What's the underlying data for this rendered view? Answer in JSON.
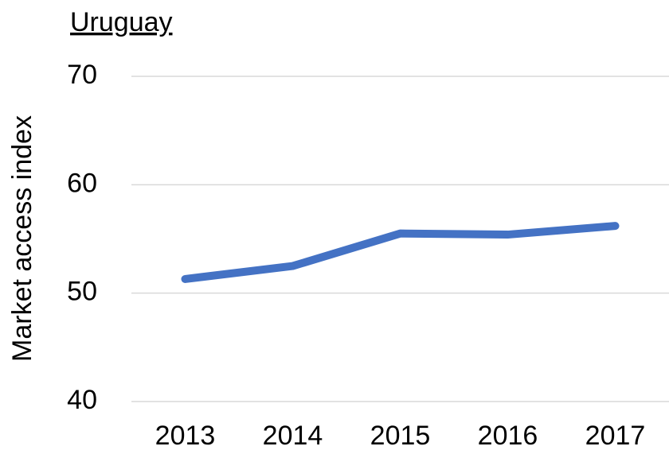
{
  "chart_data": {
    "type": "line",
    "title": "Uruguay",
    "ylabel": "Market access index",
    "categories": [
      "2013",
      "2014",
      "2015",
      "2016",
      "2017"
    ],
    "series": [
      {
        "name": "Uruguay",
        "color": "#4472c4",
        "values": [
          51.3,
          52.5,
          55.5,
          55.4,
          56.2
        ]
      }
    ],
    "ylim": [
      40,
      70
    ],
    "yticks": [
      40,
      50,
      60,
      70
    ],
    "grid": true
  }
}
